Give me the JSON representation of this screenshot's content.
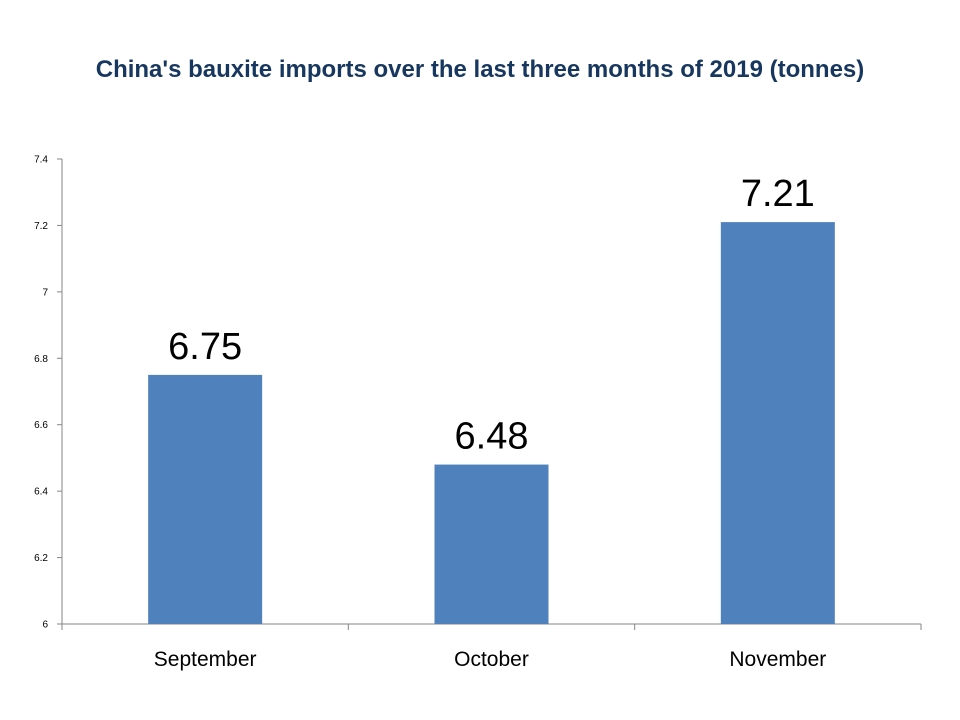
{
  "chart_data": {
    "type": "bar",
    "title": "China's bauxite imports over the last three months of 2019 (tonnes)",
    "xlabel": "",
    "ylabel": "",
    "categories": [
      "September",
      "October",
      "November"
    ],
    "values": [
      6.75,
      6.48,
      7.21
    ],
    "data_labels": [
      "6.75",
      "6.48",
      "7.21"
    ],
    "ylim": [
      6,
      7.4
    ],
    "y_ticks": [
      6,
      6.2,
      6.4,
      6.6,
      6.8,
      7,
      7.2,
      7.4
    ],
    "y_tick_labels": [
      "6",
      "6.2",
      "6.4",
      "6.6",
      "6.8",
      "7",
      "7.2",
      "7.4"
    ],
    "grid": false,
    "legend": "none",
    "bar_color": "#4f81bd",
    "title_color": "#17375e",
    "axis_color": "#868686"
  }
}
